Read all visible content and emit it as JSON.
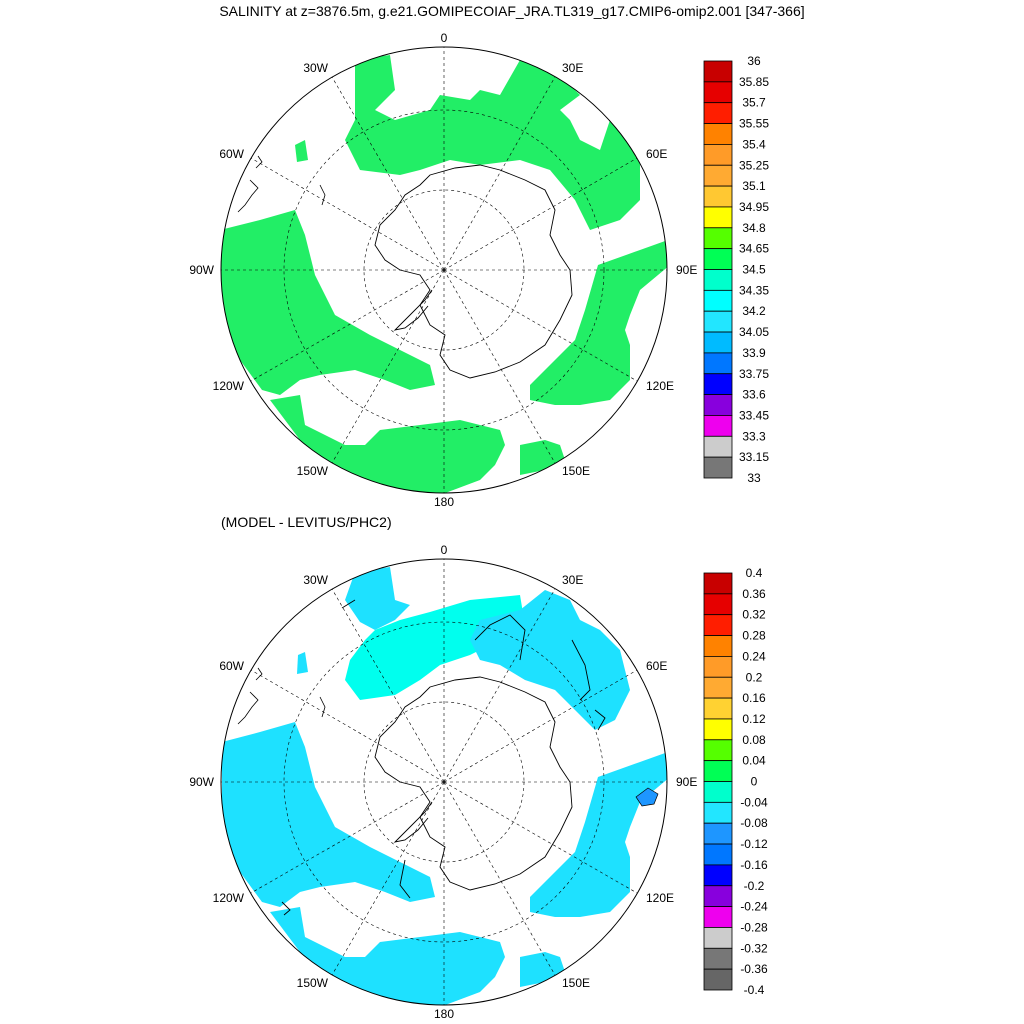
{
  "header": {
    "title": "SALINITY at z=3876.5m, g.e21.GOMIPECOIAF_JRA.TL319_g17.CMIP6-omip2.001 [347-366]"
  },
  "lower_panel": {
    "title": "(MODEL - LEVITUS/PHC2)"
  },
  "map_labels": {
    "lon_0": "0",
    "lon_30E": "30E",
    "lon_60E": "60E",
    "lon_90E": "90E",
    "lon_120E": "120E",
    "lon_150E": "150E",
    "lon_180": "180",
    "lon_150W": "150W",
    "lon_120W": "120W",
    "lon_90W": "90W",
    "lon_60W": "60W",
    "lon_30W": "30W"
  },
  "colorbar_top": {
    "labels": [
      "36",
      "35.85",
      "35.7",
      "35.55",
      "35.4",
      "35.25",
      "35.1",
      "34.95",
      "34.8",
      "34.65",
      "34.5",
      "34.35",
      "34.2",
      "34.05",
      "33.9",
      "33.75",
      "33.6",
      "33.45",
      "33.3",
      "33.15",
      "33"
    ],
    "colors": [
      "#c80000",
      "#e60000",
      "#ff1e00",
      "#ff8200",
      "#ff9b28",
      "#ffaa32",
      "#ffc832",
      "#ffff00",
      "#55ff00",
      "#00ff55",
      "#00ffcc",
      "#00ffff",
      "#22e6ff",
      "#00bbff",
      "#0077ff",
      "#0000ff",
      "#8800dd",
      "#ee00ee",
      "#cccccc",
      "#777777"
    ]
  },
  "colorbar_bottom": {
    "labels": [
      "0.4",
      "0.36",
      "0.32",
      "0.28",
      "0.24",
      "0.2",
      "0.16",
      "0.12",
      "0.08",
      "0.04",
      "0",
      "-0.04",
      "-0.08",
      "-0.12",
      "-0.16",
      "-0.2",
      "-0.24",
      "-0.28",
      "-0.32",
      "-0.36",
      "-0.4"
    ],
    "colors": [
      "#c80000",
      "#e60000",
      "#ff1e00",
      "#ff8200",
      "#ff9b28",
      "#ffaa32",
      "#ffd232",
      "#ffff00",
      "#55ff00",
      "#00ff55",
      "#00ffcc",
      "#22e6ff",
      "#1e96ff",
      "#0077ff",
      "#0000ff",
      "#8800dd",
      "#ee00ee",
      "#cccccc",
      "#777777",
      "#666666"
    ]
  },
  "colors": {
    "top_fill": "#22ee66",
    "bottom_fill_main": "#1ee1ff",
    "bottom_fill_light": "#00ffee"
  }
}
